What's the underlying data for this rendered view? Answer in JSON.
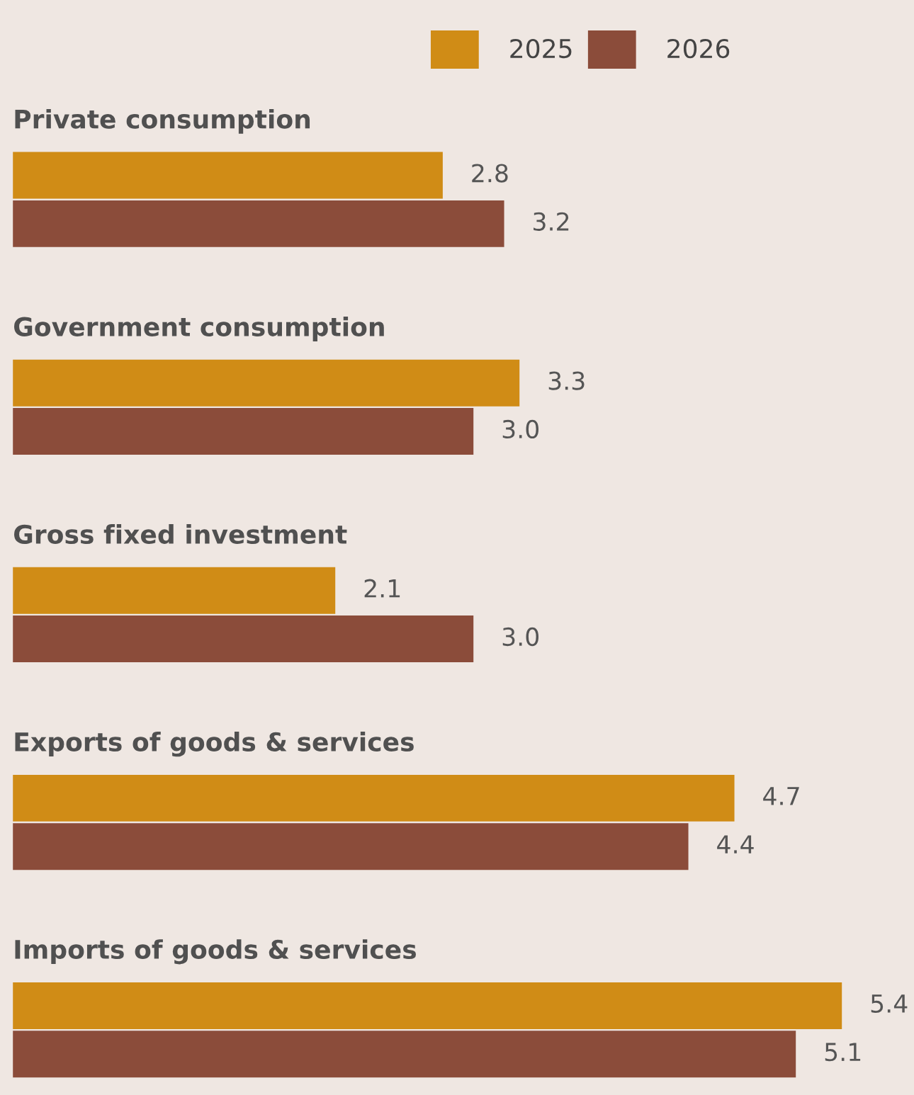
{
  "chart_data": {
    "type": "bar",
    "orientation": "horizontal",
    "categories": [
      "Private consumption",
      "Government consumption",
      "Gross fixed investment",
      "Exports of goods & services",
      "Imports of goods & services"
    ],
    "series": [
      {
        "name": "2025",
        "color": "#d08c16",
        "values": [
          2.8,
          3.3,
          2.1,
          4.7,
          5.4
        ],
        "value_labels": [
          "2.8",
          "3.3",
          "2.1",
          "4.7",
          "5.4"
        ]
      },
      {
        "name": "2026",
        "color": "#8b4c3a",
        "values": [
          3.2,
          3.0,
          3.0,
          4.4,
          5.1
        ],
        "value_labels": [
          "3.2",
          "3.0",
          "3.0",
          "4.4",
          "5.1"
        ]
      }
    ],
    "legend": "top right"
  }
}
